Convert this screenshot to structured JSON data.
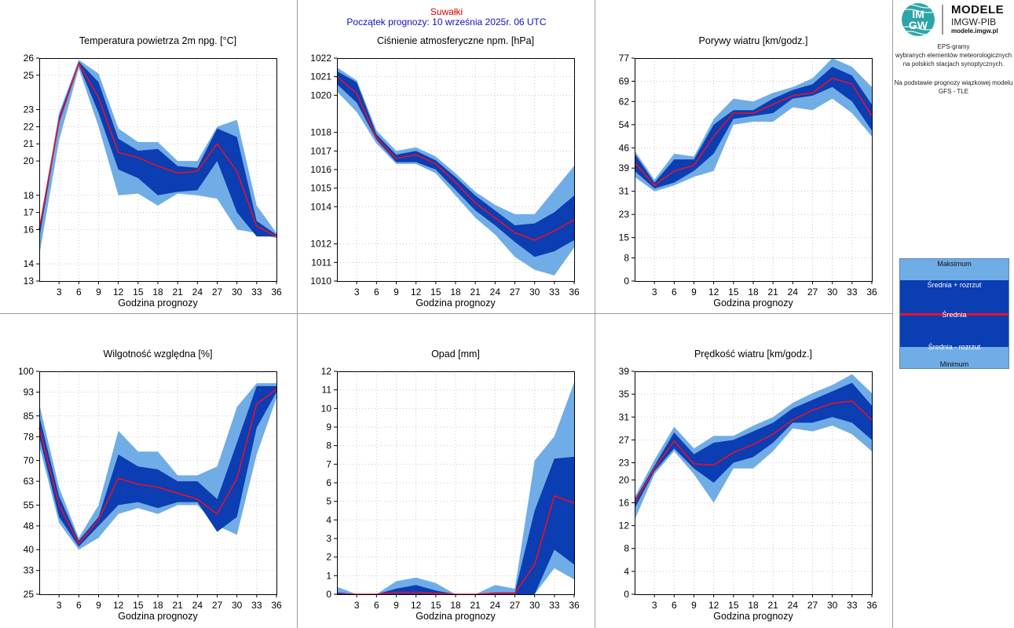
{
  "header": {
    "station": "Suwałki",
    "forecast_start": "Początek prognozy: 10 września 2025r. 06 UTC"
  },
  "sidebar": {
    "logo_badge_top": "IM",
    "logo_badge_bottom": "GW",
    "logo_title": "MODELE",
    "logo_subtitle": "IMGW-PIB",
    "logo_url": "modele.imgw.pl",
    "desc_lines": [
      "EPS-gramy",
      "wybranych elementów meteorologicznych",
      "na polskich stacjach  synoptycznych."
    ],
    "model_lines": [
      "Na podstawie prognozy wiązkowej modelu",
      "GFS - TLE"
    ],
    "legend": {
      "max": "Maksimum",
      "mean_plus": "Średnia + rozrzut",
      "mean": "Średnia",
      "mean_minus": "Średnia - rozrzut",
      "min": "Minimum"
    }
  },
  "colors": {
    "outer_band": "#70ade6",
    "inner_band": "#0b3db3",
    "mean_line": "#e8102a",
    "grid": "#c8c8c8",
    "frame": "#999999"
  },
  "chart_data": [
    {
      "type": "area",
      "title": "Temperatura powietrza 2m npg. [°C]",
      "xlabel": "Godzina prognozy",
      "x": [
        0,
        3,
        6,
        9,
        12,
        15,
        18,
        21,
        24,
        27,
        30,
        33,
        36
      ],
      "xticks": [
        3,
        6,
        9,
        12,
        15,
        18,
        21,
        24,
        27,
        30,
        33,
        36
      ],
      "ylim": [
        13,
        26
      ],
      "yticks": [
        13,
        14,
        16,
        17,
        18,
        20,
        21,
        22,
        23,
        25,
        26
      ],
      "min": [
        14.5,
        21.2,
        25.4,
        22.0,
        18.0,
        18.1,
        17.4,
        18.1,
        18.0,
        17.8,
        16.0,
        15.8,
        15.5
      ],
      "mean_minus": [
        15.5,
        22.2,
        25.6,
        22.8,
        19.5,
        19.0,
        18.0,
        18.2,
        18.3,
        20.0,
        17.0,
        15.6,
        15.6
      ],
      "mean": [
        16.0,
        22.3,
        25.7,
        23.7,
        20.5,
        20.2,
        19.7,
        19.3,
        19.4,
        21.0,
        19.4,
        16.2,
        15.6
      ],
      "mean_plus": [
        16.0,
        22.6,
        25.8,
        24.6,
        21.3,
        20.6,
        20.7,
        19.7,
        19.6,
        21.9,
        21.4,
        16.5,
        15.7
      ],
      "max": [
        16.2,
        22.8,
        25.9,
        25.1,
        21.9,
        21.1,
        21.1,
        20.0,
        20.0,
        22.0,
        22.4,
        17.4,
        15.8
      ]
    },
    {
      "type": "area",
      "title": "Ciśnienie atmosferyczne npm. [hPa]",
      "xlabel": "Godzina prognozy",
      "x": [
        0,
        3,
        6,
        9,
        12,
        15,
        18,
        21,
        24,
        27,
        30,
        33,
        36
      ],
      "xticks": [
        3,
        6,
        9,
        12,
        15,
        18,
        21,
        24,
        27,
        30,
        33,
        36
      ],
      "ylim": [
        1010,
        1022
      ],
      "yticks": [
        1010,
        1011,
        1012,
        1014,
        1015,
        1016,
        1017,
        1018,
        1020,
        1021,
        1022
      ],
      "min": [
        1020.2,
        1019.1,
        1017.4,
        1016.3,
        1016.3,
        1015.8,
        1014.6,
        1013.4,
        1012.5,
        1011.3,
        1010.6,
        1010.3,
        1011.8
      ],
      "mean_minus": [
        1020.6,
        1019.6,
        1017.6,
        1016.4,
        1016.4,
        1016.0,
        1014.9,
        1013.8,
        1013.0,
        1012.1,
        1011.3,
        1011.6,
        1012.2
      ],
      "mean": [
        1021.0,
        1020.1,
        1017.7,
        1016.6,
        1016.8,
        1016.3,
        1015.3,
        1014.2,
        1013.4,
        1012.6,
        1012.2,
        1012.7,
        1013.3
      ],
      "mean_plus": [
        1021.3,
        1020.7,
        1017.9,
        1016.8,
        1017.0,
        1016.5,
        1015.6,
        1014.6,
        1013.8,
        1013.0,
        1013.1,
        1013.7,
        1014.6
      ],
      "max": [
        1021.5,
        1020.8,
        1018.1,
        1017.0,
        1017.2,
        1016.7,
        1015.8,
        1014.8,
        1014.1,
        1013.6,
        1013.6,
        1014.9,
        1016.2
      ]
    },
    {
      "type": "area",
      "title": "Porywy wiatru [km/godz.]",
      "xlabel": "Godzina prognozy",
      "x": [
        0,
        3,
        6,
        9,
        12,
        15,
        18,
        21,
        24,
        27,
        30,
        33,
        36
      ],
      "xticks": [
        3,
        6,
        9,
        12,
        15,
        18,
        21,
        24,
        27,
        30,
        33,
        36
      ],
      "ylim": [
        0,
        77
      ],
      "yticks": [
        0,
        8,
        15,
        23,
        31,
        39,
        46,
        54,
        62,
        69,
        77
      ],
      "min": [
        36,
        31,
        33,
        36,
        38,
        54,
        55,
        55,
        60,
        59,
        63,
        58,
        50
      ],
      "mean_minus": [
        38,
        32,
        34,
        38,
        44,
        56,
        57,
        58,
        63,
        64,
        67,
        62,
        52
      ],
      "mean": [
        41,
        33,
        38,
        40,
        50,
        58,
        58,
        61,
        64,
        65,
        70,
        68,
        57
      ],
      "mean_plus": [
        44,
        34,
        42,
        42,
        54,
        59,
        59,
        63,
        66,
        68,
        74,
        71,
        61
      ],
      "max": [
        45,
        35,
        44,
        43,
        56,
        63,
        62,
        65,
        67,
        70,
        77,
        74,
        67
      ]
    },
    {
      "type": "area",
      "title": "Wilgotność względna [%]",
      "xlabel": "Godzina prognozy",
      "x": [
        0,
        3,
        6,
        9,
        12,
        15,
        18,
        21,
        24,
        27,
        30,
        33,
        36
      ],
      "xticks": [
        3,
        6,
        9,
        12,
        15,
        18,
        21,
        24,
        27,
        30,
        33,
        36
      ],
      "ylim": [
        25,
        100
      ],
      "yticks": [
        25,
        33,
        40,
        48,
        55,
        63,
        70,
        78,
        85,
        93,
        100
      ],
      "min": [
        75,
        49,
        40,
        44,
        52,
        54,
        52,
        55,
        55,
        48,
        45,
        72,
        91
      ],
      "mean_minus": [
        78,
        51,
        41,
        48,
        55,
        56,
        54,
        56,
        56,
        46,
        51,
        81,
        93
      ],
      "mean": [
        81,
        55,
        42,
        50,
        64,
        62,
        61,
        59,
        57,
        52,
        64,
        89,
        94
      ],
      "mean_plus": [
        85,
        58,
        43,
        51,
        72,
        68,
        67,
        63,
        63,
        57,
        76,
        95,
        95
      ],
      "max": [
        89,
        61,
        44,
        55,
        80,
        73,
        73,
        65,
        65,
        68,
        88,
        96,
        96
      ]
    },
    {
      "type": "area",
      "title": "Opad [mm]",
      "xlabel": "Godzina prognozy",
      "x": [
        0,
        3,
        6,
        9,
        12,
        15,
        18,
        21,
        24,
        27,
        30,
        33,
        36
      ],
      "xticks": [
        3,
        6,
        9,
        12,
        15,
        18,
        21,
        24,
        27,
        30,
        33,
        36
      ],
      "ylim": [
        0,
        12
      ],
      "yticks": [
        0,
        1,
        2,
        3,
        4,
        5,
        6,
        7,
        8,
        9,
        10,
        11,
        12
      ],
      "min": [
        0,
        0,
        0,
        0,
        0,
        0,
        0,
        0,
        0,
        0,
        0,
        1.4,
        0.8
      ],
      "mean_minus": [
        0,
        0,
        0,
        0,
        0,
        0,
        0,
        0,
        0,
        0,
        0,
        2.4,
        1.6
      ],
      "mean": [
        0,
        0,
        0,
        0.1,
        0.1,
        0.05,
        0,
        0,
        0.05,
        0.05,
        1.6,
        5.3,
        4.9
      ],
      "mean_plus": [
        0.1,
        0,
        0,
        0.3,
        0.5,
        0.2,
        0,
        0,
        0.1,
        0.1,
        4.5,
        7.3,
        7.4
      ],
      "max": [
        0.4,
        0,
        0,
        0.7,
        0.9,
        0.6,
        0,
        0,
        0.5,
        0.3,
        7.2,
        8.5,
        11.4
      ]
    },
    {
      "type": "area",
      "title": "Prędkość wiatru [km/godz.]",
      "xlabel": "Godzina prognozy",
      "x": [
        0,
        3,
        6,
        9,
        12,
        15,
        18,
        21,
        24,
        27,
        30,
        33,
        36
      ],
      "xticks": [
        3,
        6,
        9,
        12,
        15,
        18,
        21,
        24,
        27,
        30,
        33,
        36
      ],
      "ylim": [
        0,
        39
      ],
      "yticks": [
        0,
        4,
        8,
        12,
        16,
        20,
        23,
        27,
        31,
        35,
        39
      ],
      "min": [
        13,
        21,
        25,
        21,
        16,
        22,
        22,
        25,
        29,
        28.5,
        29.5,
        28,
        25
      ],
      "mean_minus": [
        15,
        21.5,
        25.5,
        22,
        19.5,
        23,
        24,
        26.5,
        30,
        30,
        31,
        30,
        27
      ],
      "mean": [
        16,
        22,
        26.8,
        22.8,
        22.6,
        24.8,
        26.2,
        28,
        30.5,
        32.2,
        33.4,
        33.8,
        30.5
      ],
      "mean_plus": [
        16.5,
        22.5,
        28.3,
        24.5,
        26.5,
        27,
        28.5,
        30,
        32.5,
        34,
        35.5,
        37,
        33
      ],
      "max": [
        17,
        23.5,
        29.3,
        25.5,
        27.7,
        27.7,
        29.5,
        31,
        33.5,
        35.2,
        36.6,
        38.5,
        35.2
      ]
    }
  ]
}
